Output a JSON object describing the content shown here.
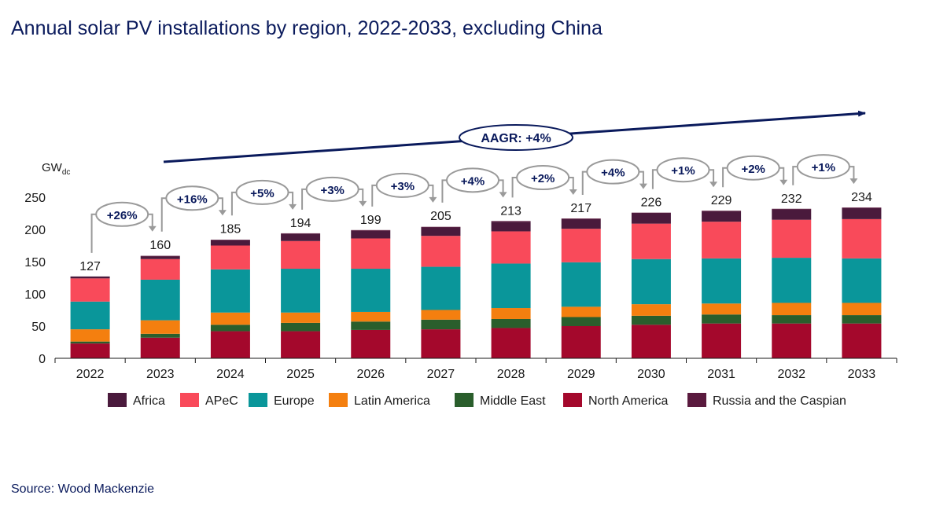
{
  "title": "Annual solar PV installations by region, 2022-2033, excluding China",
  "source": "Source: Wood Mackenzie",
  "y_unit": {
    "main": "GW",
    "sub": "dc"
  },
  "aagr_label": "AAGR: +4%",
  "colors": {
    "Africa": "#4a1a3c",
    "APeC": "#f94a5a",
    "Europe": "#0a969a",
    "Latin America": "#f47f0f",
    "Middle East": "#2a5e2c",
    "North America": "#a4082c",
    "Russia and the Caspian": "#5a1a3e",
    "title": "#0a1a5c",
    "callout": "#9a9a9a"
  },
  "chart_data": {
    "type": "bar",
    "stacked": true,
    "categories": [
      "2022",
      "2023",
      "2024",
      "2025",
      "2026",
      "2027",
      "2028",
      "2029",
      "2030",
      "2031",
      "2032",
      "2033"
    ],
    "ylim": [
      0,
      250
    ],
    "yticks": [
      0,
      50,
      100,
      150,
      200,
      250
    ],
    "ylabel": "GWdc",
    "legend_position": "bottom",
    "series": [
      {
        "name": "North America",
        "values": [
          23,
          32,
          42,
          42,
          44,
          45,
          47,
          50,
          52,
          54,
          54,
          54
        ]
      },
      {
        "name": "Middle East",
        "values": [
          3,
          6,
          10,
          13,
          13,
          15,
          14,
          14,
          14,
          14,
          13,
          13
        ]
      },
      {
        "name": "Latin America",
        "values": [
          19,
          21,
          19,
          16,
          15,
          15,
          17,
          16,
          18,
          17,
          19,
          19
        ]
      },
      {
        "name": "Europe",
        "values": [
          43,
          63,
          67,
          68,
          67,
          67,
          69,
          69,
          70,
          70,
          70,
          69
        ]
      },
      {
        "name": "APeC",
        "values": [
          36,
          32,
          37,
          43,
          47,
          48,
          50,
          52,
          55,
          57,
          59,
          61
        ]
      },
      {
        "name": "Africa",
        "values": [
          3,
          4,
          8,
          11,
          12,
          13,
          15,
          15,
          16,
          16,
          16,
          17
        ]
      },
      {
        "name": "Russia and the Caspian",
        "values": [
          0,
          1,
          1,
          1,
          1,
          1,
          1,
          1,
          1,
          1,
          1,
          1
        ]
      }
    ],
    "totals": [
      127,
      160,
      185,
      194,
      199,
      205,
      213,
      217,
      226,
      229,
      232,
      234
    ],
    "growth_labels": [
      "+26%",
      "+16%",
      "+5%",
      "+3%",
      "+3%",
      "+4%",
      "+2%",
      "+4%",
      "+1%",
      "+2%",
      "+1%"
    ],
    "legend": [
      "Africa",
      "APeC",
      "Europe",
      "Latin America",
      "Middle East",
      "North America",
      "Russia and the Caspian"
    ]
  }
}
